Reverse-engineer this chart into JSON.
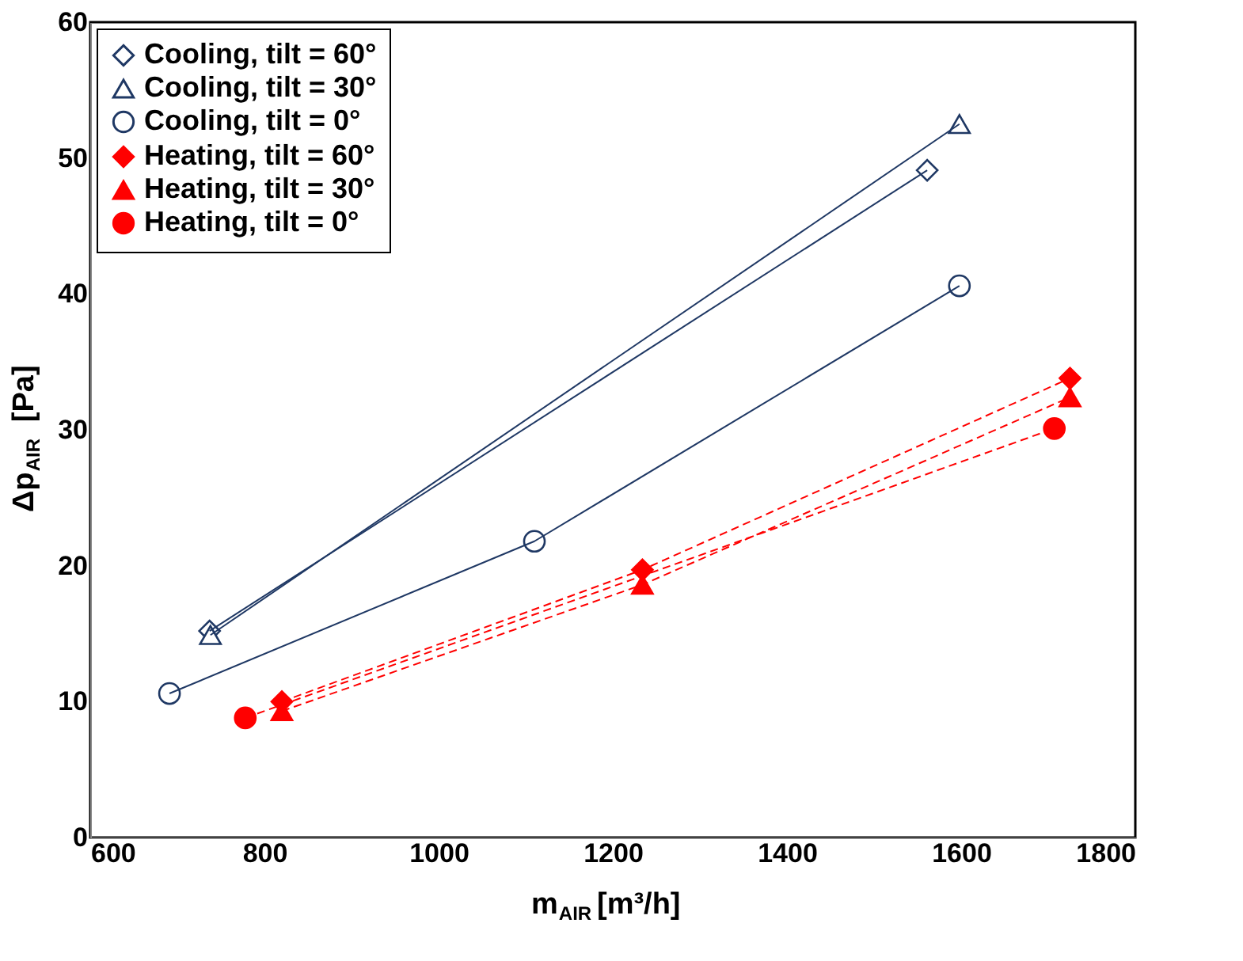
{
  "chart_data": {
    "type": "line",
    "xlabel": "m$_{AIR}$[m³/h]",
    "ylabel": "Δp$_{AIR}$ [Pa]",
    "xlim": [
      600,
      1800
    ],
    "xticks": [
      600,
      800,
      {
        "value": 1000,
        "label": "1000"
      },
      {
        "value": 1200,
        "label": "1200"
      },
      {
        "value": 1400,
        "label": "1400"
      },
      {
        "value": 1600,
        "label": "1600"
      },
      {
        "value": 1800,
        "label": "1800"
      }
    ],
    "ylim": [
      0,
      60
    ],
    "yticks": [
      0,
      10,
      20,
      30,
      40,
      50,
      60
    ],
    "grid": false,
    "legend": "top left",
    "series": [
      {
        "name": "Cooling, tilt = 60°",
        "color": "#1f3864",
        "marker": "diamond",
        "line_style": "solid",
        "x": [
          737,
          1561
        ],
        "values": [
          15.2,
          49.1
        ]
      },
      {
        "name": "Cooling, tilt = 30°",
        "color": "#1f3864",
        "marker": "triangle",
        "line_style": "solid",
        "x": [
          738,
          1598
        ],
        "values": [
          14.9,
          52.5
        ]
      },
      {
        "name": "Cooling, tilt = 0°",
        "color": "#1f3864",
        "marker": "circle",
        "line_style": "solid",
        "x": [
          691,
          1110,
          1598
        ],
        "values": [
          10.6,
          21.8,
          40.6
        ]
      },
      {
        "name": "Heating, tilt = 60°",
        "color": "#ff0000",
        "marker": "diamond",
        "line_style": "dashed",
        "x": [
          820,
          1234,
          1725
        ],
        "values": [
          10.0,
          19.7,
          33.8
        ]
      },
      {
        "name": "Heating, tilt = 30°",
        "color": "#ff0000",
        "marker": "triangle",
        "line_style": "dashed",
        "x": [
          820,
          1234,
          1725
        ],
        "values": [
          9.3,
          18.6,
          32.4
        ]
      },
      {
        "name": "Heating, tilt = 0°",
        "color": "#ff0000",
        "marker": "circle",
        "line_style": "dashed",
        "x": [
          778,
          1707
        ],
        "values": [
          8.8,
          30.1
        ]
      }
    ]
  }
}
